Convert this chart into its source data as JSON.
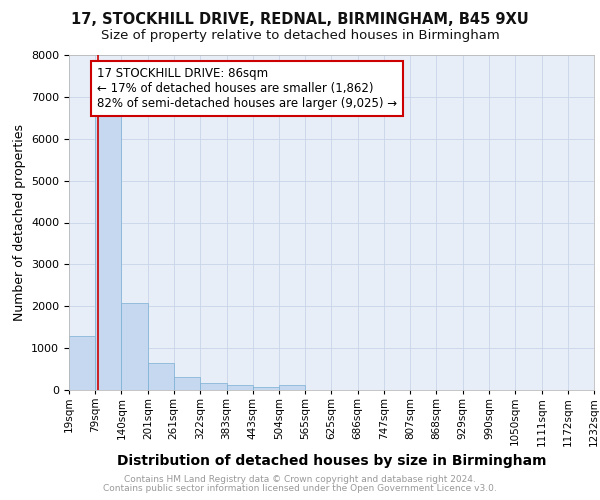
{
  "title_line1": "17, STOCKHILL DRIVE, REDNAL, BIRMINGHAM, B45 9XU",
  "title_line2": "Size of property relative to detached houses in Birmingham",
  "xlabel": "Distribution of detached houses by size in Birmingham",
  "ylabel": "Number of detached properties",
  "bin_edges": [
    19,
    79,
    140,
    201,
    261,
    322,
    383,
    443,
    504,
    565,
    625,
    686,
    747,
    807,
    868,
    929,
    990,
    1050,
    1111,
    1172,
    1232
  ],
  "bin_labels": [
    "19sqm",
    "79sqm",
    "140sqm",
    "201sqm",
    "261sqm",
    "322sqm",
    "383sqm",
    "443sqm",
    "504sqm",
    "565sqm",
    "625sqm",
    "686sqm",
    "747sqm",
    "807sqm",
    "868sqm",
    "929sqm",
    "990sqm",
    "1050sqm",
    "1111sqm",
    "1172sqm",
    "1232sqm"
  ],
  "bar_heights": [
    1300,
    6600,
    2080,
    650,
    310,
    160,
    110,
    70,
    110,
    0,
    0,
    0,
    0,
    0,
    0,
    0,
    0,
    0,
    0,
    0
  ],
  "bar_color": "#c5d8f0",
  "bar_edge_color": "#7aafd4",
  "property_size": 86,
  "vline_color": "#cc0000",
  "annotation_text": "17 STOCKHILL DRIVE: 86sqm\n← 17% of detached houses are smaller (1,862)\n82% of semi-detached houses are larger (9,025) →",
  "annotation_box_color": "#cc0000",
  "annotation_text_color": "#000000",
  "ylim": [
    0,
    8000
  ],
  "yticks": [
    0,
    1000,
    2000,
    3000,
    4000,
    5000,
    6000,
    7000,
    8000
  ],
  "grid_color": "#c8d4e8",
  "background_color": "#e8eef8",
  "plot_bg_color": "#ffffff",
  "footer_line1": "Contains HM Land Registry data © Crown copyright and database right 2024.",
  "footer_line2": "Contains public sector information licensed under the Open Government Licence v3.0.",
  "footer_color": "#999999",
  "title_fontsize": 10.5,
  "subtitle_fontsize": 9.5,
  "xlabel_fontsize": 10,
  "ylabel_fontsize": 9,
  "tick_label_fontsize": 7.5,
  "annotation_fontsize": 8.5,
  "footer_fontsize": 6.5
}
